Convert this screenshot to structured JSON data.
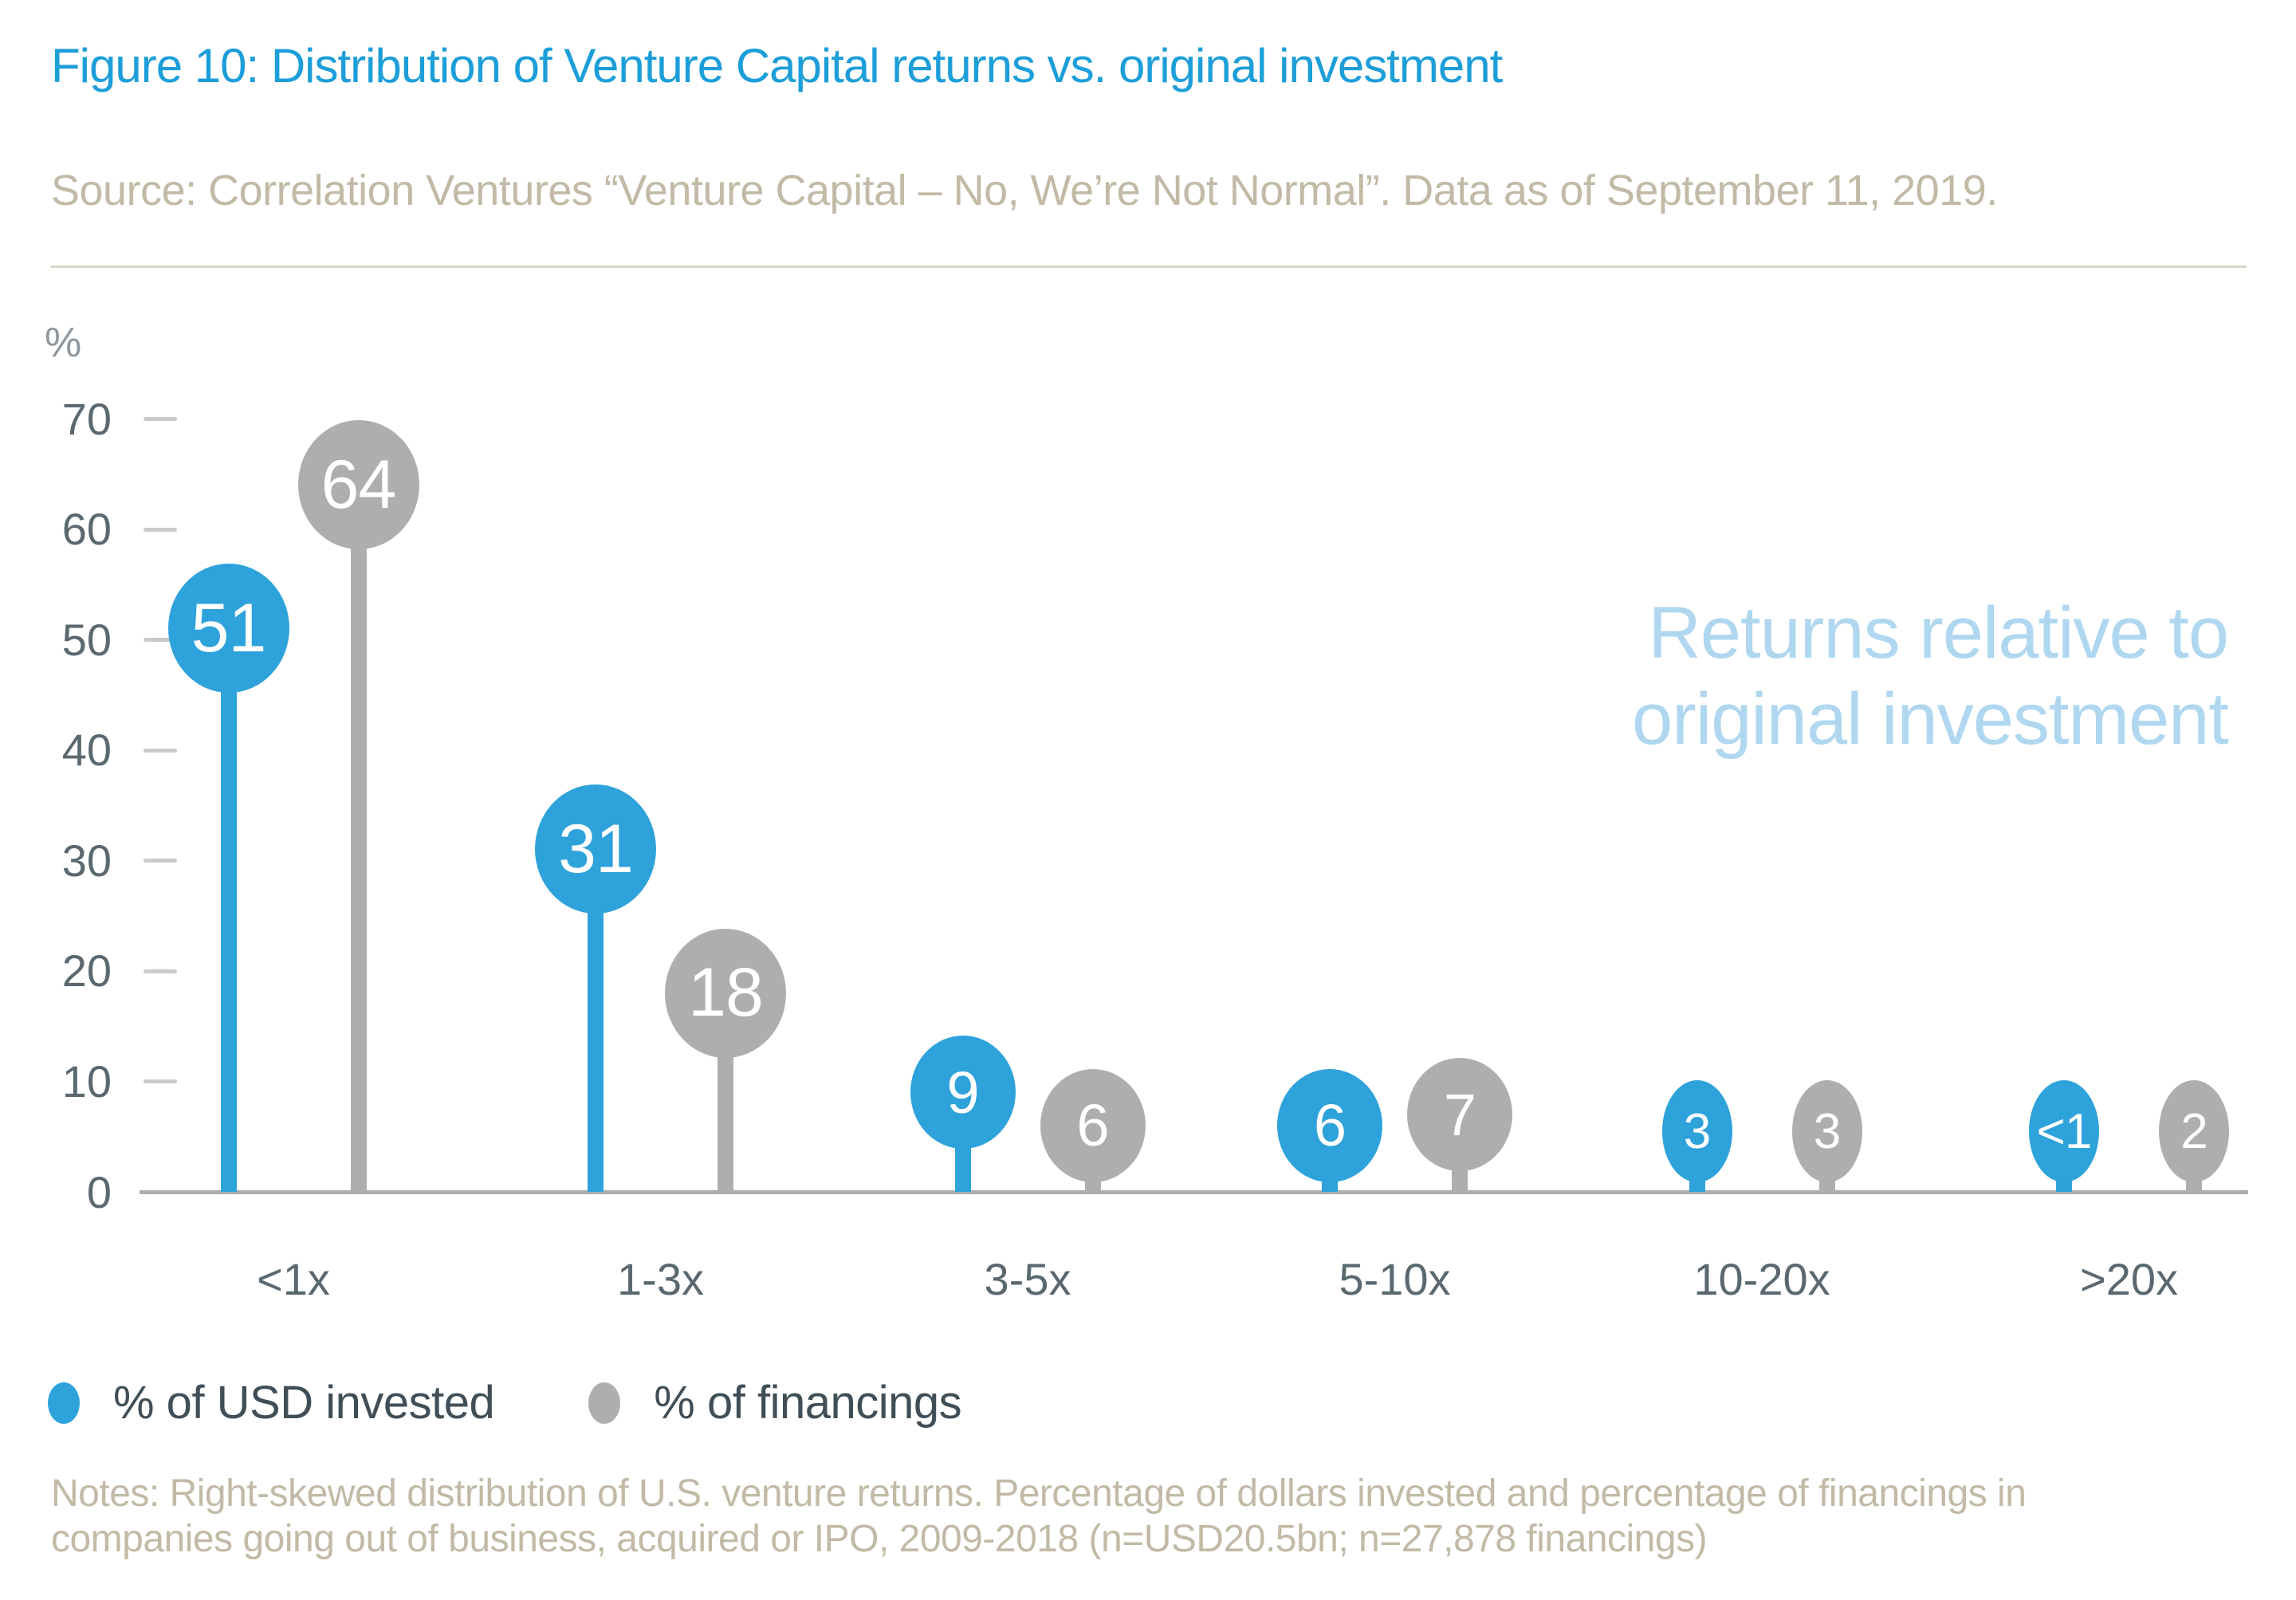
{
  "header": {
    "title": "Figure 10: Distribution of Venture Capital returns vs. original investment",
    "source": "Source: Correlation Ventures “Venture Capital – No, We’re Not Normal”. Data as of September 11, 2019."
  },
  "colors": {
    "title_blue": "#1C9ED9",
    "muted_tan": "#C2BAA6",
    "divider": "#D8D5C9",
    "axis_text": "#5A6870",
    "axis_unit": "#8E979D",
    "tick_dash": "#C8CBCD",
    "baseline": "#ACAFB1",
    "legend_text": "#3F4E57",
    "watermark_blue": "#AFD7F0"
  },
  "watermark": {
    "line1": "Returns relative to",
    "line2": "original investment"
  },
  "legend": {
    "items": [
      {
        "label": "% of USD invested",
        "color": "#2EA2DB"
      },
      {
        "label": "% of financings",
        "color": "#AEAEAE"
      }
    ]
  },
  "notes": {
    "lines": [
      "Notes: Right-skewed distribution of U.S. venture returns. Percentage of dollars invested and percentage of financings in",
      "companies going out of business, acquired or IPO, 2009-2018 (n=USD20.5bn; n=27,878 financings)"
    ]
  },
  "chart_data": {
    "type": "lollipop",
    "title": "Figure 10: Distribution of Venture Capital returns vs. original investment",
    "categories": [
      "<1x",
      "1-3x",
      "3-5x",
      "5-10x",
      "10-20x",
      ">20x"
    ],
    "x_axis_annotation": "Returns relative to original investment",
    "y_unit": "%",
    "y_ticks": [
      70,
      60,
      50,
      40,
      30,
      20,
      10,
      0
    ],
    "ylim": [
      0,
      75
    ],
    "grid": false,
    "legend_position": "bottom-left",
    "series": [
      {
        "name": "% of USD invested",
        "color": "#2EA2DB",
        "labels": [
          "51",
          "31",
          "9",
          "6",
          "3",
          "<1"
        ],
        "values": [
          51,
          31,
          9,
          6,
          3,
          0.5
        ]
      },
      {
        "name": "% of financings",
        "color": "#AEAEAE",
        "labels": [
          "64",
          "18",
          "6",
          "7",
          "3",
          "2"
        ],
        "values": [
          64,
          18,
          6,
          7,
          3,
          2
        ]
      }
    ]
  }
}
